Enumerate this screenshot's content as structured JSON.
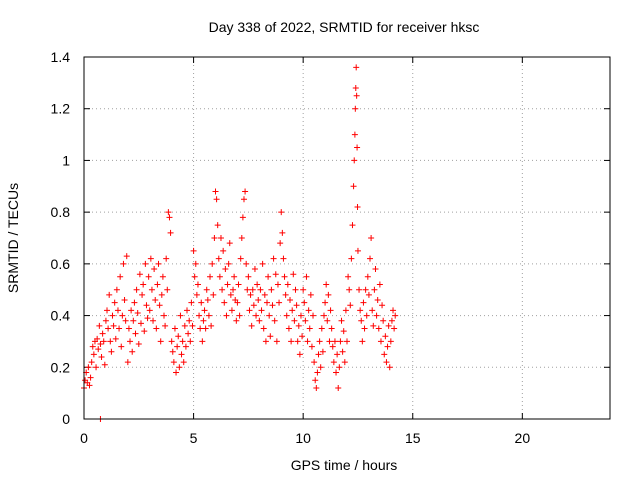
{
  "chart_data": {
    "type": "scatter",
    "title": "Day 338 of 2022, SRMTID for receiver hksc",
    "xlabel": "GPS time / hours",
    "ylabel": "SRMTID / TECUs",
    "xlim": [
      0,
      24
    ],
    "ylim": [
      0,
      1.4
    ],
    "xticks": [
      0,
      5,
      10,
      15,
      20
    ],
    "xtick_labels": [
      "0",
      "5",
      "10",
      "15",
      "20"
    ],
    "yticks": [
      0,
      0.2,
      0.4,
      0.6,
      0.8,
      1.0,
      1.2,
      1.4
    ],
    "ytick_labels": [
      "0",
      "0.2",
      "0.4",
      "0.6",
      "0.8",
      "1",
      "1.2",
      "1.4"
    ],
    "grid": true,
    "marker": "plus",
    "color": "#ff0000",
    "series": [
      {
        "name": "SRMTID",
        "points": [
          [
            0.0,
            0.12
          ],
          [
            0.05,
            0.15
          ],
          [
            0.1,
            0.18
          ],
          [
            0.15,
            0.14
          ],
          [
            0.2,
            0.2
          ],
          [
            0.25,
            0.13
          ],
          [
            0.3,
            0.16
          ],
          [
            0.35,
            0.22
          ],
          [
            0.4,
            0.28
          ],
          [
            0.45,
            0.25
          ],
          [
            0.5,
            0.3
          ],
          [
            0.55,
            0.2
          ],
          [
            0.6,
            0.31
          ],
          [
            0.65,
            0.27
          ],
          [
            0.7,
            0.36
          ],
          [
            0.75,
            0.29
          ],
          [
            0.8,
            0.24
          ],
          [
            0.85,
            0.33
          ],
          [
            0.9,
            0.3
          ],
          [
            0.95,
            0.21
          ],
          [
            1.0,
            0.38
          ],
          [
            1.05,
            0.42
          ],
          [
            1.1,
            0.35
          ],
          [
            1.15,
            0.48
          ],
          [
            1.2,
            0.3
          ],
          [
            1.25,
            0.26
          ],
          [
            1.3,
            0.4
          ],
          [
            1.35,
            0.36
          ],
          [
            1.4,
            0.45
          ],
          [
            1.45,
            0.31
          ],
          [
            1.5,
            0.5
          ],
          [
            1.55,
            0.42
          ],
          [
            1.6,
            0.35
          ],
          [
            1.65,
            0.55
          ],
          [
            1.7,
            0.28
          ],
          [
            1.75,
            0.4
          ],
          [
            1.8,
            0.6
          ],
          [
            1.85,
            0.46
          ],
          [
            1.9,
            0.38
          ],
          [
            1.95,
            0.63
          ],
          [
            2.0,
            0.22
          ],
          [
            2.05,
            0.35
          ],
          [
            2.1,
            0.3
          ],
          [
            2.15,
            0.42
          ],
          [
            2.2,
            0.26
          ],
          [
            2.25,
            0.38
          ],
          [
            2.3,
            0.45
          ],
          [
            2.35,
            0.33
          ],
          [
            2.4,
            0.5
          ],
          [
            2.45,
            0.41
          ],
          [
            2.5,
            0.29
          ],
          [
            2.55,
            0.56
          ],
          [
            2.6,
            0.37
          ],
          [
            2.65,
            0.48
          ],
          [
            2.7,
            0.52
          ],
          [
            2.75,
            0.34
          ],
          [
            2.8,
            0.6
          ],
          [
            2.85,
            0.44
          ],
          [
            2.9,
            0.39
          ],
          [
            2.95,
            0.55
          ],
          [
            3.0,
            0.42
          ],
          [
            3.05,
            0.62
          ],
          [
            3.1,
            0.5
          ],
          [
            3.15,
            0.38
          ],
          [
            3.2,
            0.58
          ],
          [
            3.25,
            0.46
          ],
          [
            3.3,
            0.35
          ],
          [
            3.35,
            0.52
          ],
          [
            3.4,
            0.6
          ],
          [
            3.45,
            0.44
          ],
          [
            3.5,
            0.3
          ],
          [
            3.55,
            0.48
          ],
          [
            3.6,
            0.55
          ],
          [
            3.65,
            0.4
          ],
          [
            3.7,
            0.36
          ],
          [
            3.75,
            0.62
          ],
          [
            3.8,
            0.5
          ],
          [
            3.85,
            0.8
          ],
          [
            3.9,
            0.78
          ],
          [
            3.95,
            0.72
          ],
          [
            4.0,
            0.3
          ],
          [
            4.05,
            0.26
          ],
          [
            4.1,
            0.22
          ],
          [
            4.15,
            0.35
          ],
          [
            4.2,
            0.18
          ],
          [
            4.25,
            0.28
          ],
          [
            4.3,
            0.32
          ],
          [
            4.35,
            0.2
          ],
          [
            4.4,
            0.4
          ],
          [
            4.45,
            0.25
          ],
          [
            4.5,
            0.3
          ],
          [
            4.55,
            0.22
          ],
          [
            4.6,
            0.36
          ],
          [
            4.65,
            0.28
          ],
          [
            4.7,
            0.42
          ],
          [
            4.75,
            0.33
          ],
          [
            4.8,
            0.38
          ],
          [
            4.85,
            0.3
          ],
          [
            4.9,
            0.45
          ],
          [
            4.95,
            0.36
          ],
          [
            5.0,
            0.65
          ],
          [
            5.05,
            0.55
          ],
          [
            5.1,
            0.6
          ],
          [
            5.15,
            0.48
          ],
          [
            5.2,
            0.52
          ],
          [
            5.25,
            0.4
          ],
          [
            5.3,
            0.35
          ],
          [
            5.35,
            0.45
          ],
          [
            5.4,
            0.3
          ],
          [
            5.45,
            0.38
          ],
          [
            5.5,
            0.42
          ],
          [
            5.55,
            0.35
          ],
          [
            5.6,
            0.5
          ],
          [
            5.65,
            0.46
          ],
          [
            5.7,
            0.4
          ],
          [
            5.75,
            0.55
          ],
          [
            5.8,
            0.36
          ],
          [
            5.85,
            0.6
          ],
          [
            5.9,
            0.48
          ],
          [
            5.95,
            0.7
          ],
          [
            6.0,
            0.88
          ],
          [
            6.05,
            0.85
          ],
          [
            6.1,
            0.75
          ],
          [
            6.15,
            0.62
          ],
          [
            6.2,
            0.55
          ],
          [
            6.25,
            0.7
          ],
          [
            6.3,
            0.5
          ],
          [
            6.35,
            0.65
          ],
          [
            6.4,
            0.45
          ],
          [
            6.45,
            0.58
          ],
          [
            6.5,
            0.4
          ],
          [
            6.55,
            0.52
          ],
          [
            6.6,
            0.6
          ],
          [
            6.65,
            0.68
          ],
          [
            6.7,
            0.48
          ],
          [
            6.75,
            0.42
          ],
          [
            6.8,
            0.5
          ],
          [
            6.85,
            0.55
          ],
          [
            6.9,
            0.46
          ],
          [
            6.95,
            0.38
          ],
          [
            7.0,
            0.45
          ],
          [
            7.05,
            0.52
          ],
          [
            7.1,
            0.4
          ],
          [
            7.15,
            0.62
          ],
          [
            7.2,
            0.7
          ],
          [
            7.25,
            0.78
          ],
          [
            7.3,
            0.85
          ],
          [
            7.35,
            0.88
          ],
          [
            7.4,
            0.6
          ],
          [
            7.45,
            0.5
          ],
          [
            7.5,
            0.55
          ],
          [
            7.55,
            0.42
          ],
          [
            7.6,
            0.48
          ],
          [
            7.65,
            0.36
          ],
          [
            7.7,
            0.5
          ],
          [
            7.75,
            0.44
          ],
          [
            7.8,
            0.58
          ],
          [
            7.85,
            0.4
          ],
          [
            7.9,
            0.52
          ],
          [
            7.95,
            0.46
          ],
          [
            8.0,
            0.38
          ],
          [
            8.05,
            0.5
          ],
          [
            8.1,
            0.42
          ],
          [
            8.15,
            0.6
          ],
          [
            8.2,
            0.35
          ],
          [
            8.25,
            0.48
          ],
          [
            8.3,
            0.3
          ],
          [
            8.35,
            0.45
          ],
          [
            8.4,
            0.55
          ],
          [
            8.45,
            0.4
          ],
          [
            8.5,
            0.32
          ],
          [
            8.55,
            0.5
          ],
          [
            8.6,
            0.44
          ],
          [
            8.65,
            0.62
          ],
          [
            8.7,
            0.38
          ],
          [
            8.75,
            0.56
          ],
          [
            8.8,
            0.3
          ],
          [
            8.85,
            0.52
          ],
          [
            8.9,
            0.45
          ],
          [
            8.95,
            0.68
          ],
          [
            9.0,
            0.8
          ],
          [
            9.05,
            0.72
          ],
          [
            9.1,
            0.62
          ],
          [
            9.15,
            0.55
          ],
          [
            9.2,
            0.48
          ],
          [
            9.25,
            0.4
          ],
          [
            9.3,
            0.52
          ],
          [
            9.35,
            0.35
          ],
          [
            9.4,
            0.46
          ],
          [
            9.45,
            0.3
          ],
          [
            9.5,
            0.42
          ],
          [
            9.55,
            0.56
          ],
          [
            9.6,
            0.38
          ],
          [
            9.65,
            0.5
          ],
          [
            9.7,
            0.44
          ],
          [
            9.75,
            0.3
          ],
          [
            9.8,
            0.36
          ],
          [
            9.85,
            0.25
          ],
          [
            9.9,
            0.4
          ],
          [
            9.95,
            0.32
          ],
          [
            10.0,
            0.5
          ],
          [
            10.05,
            0.45
          ],
          [
            10.1,
            0.38
          ],
          [
            10.15,
            0.55
          ],
          [
            10.2,
            0.3
          ],
          [
            10.25,
            0.42
          ],
          [
            10.3,
            0.35
          ],
          [
            10.35,
            0.48
          ],
          [
            10.4,
            0.28
          ],
          [
            10.45,
            0.4
          ],
          [
            10.5,
            0.22
          ],
          [
            10.55,
            0.15
          ],
          [
            10.6,
            0.12
          ],
          [
            10.65,
            0.18
          ],
          [
            10.7,
            0.25
          ],
          [
            10.75,
            0.3
          ],
          [
            10.8,
            0.2
          ],
          [
            10.85,
            0.35
          ],
          [
            10.9,
            0.26
          ],
          [
            10.95,
            0.4
          ],
          [
            11.0,
            0.45
          ],
          [
            11.05,
            0.52
          ],
          [
            11.1,
            0.38
          ],
          [
            11.15,
            0.48
          ],
          [
            11.2,
            0.3
          ],
          [
            11.25,
            0.42
          ],
          [
            11.3,
            0.35
          ],
          [
            11.35,
            0.28
          ],
          [
            11.4,
            0.22
          ],
          [
            11.45,
            0.3
          ],
          [
            11.5,
            0.18
          ],
          [
            11.55,
            0.25
          ],
          [
            11.6,
            0.12
          ],
          [
            11.65,
            0.2
          ],
          [
            11.7,
            0.3
          ],
          [
            11.75,
            0.38
          ],
          [
            11.8,
            0.26
          ],
          [
            11.85,
            0.34
          ],
          [
            11.9,
            0.22
          ],
          [
            11.95,
            0.42
          ],
          [
            12.0,
            0.3
          ],
          [
            12.05,
            0.55
          ],
          [
            12.1,
            0.5
          ],
          [
            12.15,
            0.44
          ],
          [
            12.2,
            0.62
          ],
          [
            12.25,
            0.75
          ],
          [
            12.3,
            0.9
          ],
          [
            12.33,
            1.0
          ],
          [
            12.36,
            1.1
          ],
          [
            12.38,
            1.2
          ],
          [
            12.4,
            1.28
          ],
          [
            12.42,
            1.36
          ],
          [
            12.44,
            1.25
          ],
          [
            12.46,
            1.05
          ],
          [
            12.48,
            0.82
          ],
          [
            12.5,
            0.65
          ],
          [
            12.55,
            0.5
          ],
          [
            12.6,
            0.42
          ],
          [
            12.65,
            0.38
          ],
          [
            12.7,
            0.3
          ],
          [
            12.75,
            0.45
          ],
          [
            12.8,
            0.35
          ],
          [
            12.85,
            0.5
          ],
          [
            12.9,
            0.4
          ],
          [
            12.95,
            0.55
          ],
          [
            13.0,
            0.48
          ],
          [
            13.05,
            0.62
          ],
          [
            13.1,
            0.7
          ],
          [
            13.15,
            0.42
          ],
          [
            13.2,
            0.36
          ],
          [
            13.25,
            0.5
          ],
          [
            13.3,
            0.58
          ],
          [
            13.35,
            0.4
          ],
          [
            13.4,
            0.46
          ],
          [
            13.45,
            0.35
          ],
          [
            13.5,
            0.52
          ],
          [
            13.55,
            0.3
          ],
          [
            13.6,
            0.44
          ],
          [
            13.65,
            0.38
          ],
          [
            13.7,
            0.25
          ],
          [
            13.75,
            0.32
          ],
          [
            13.8,
            0.22
          ],
          [
            13.85,
            0.28
          ],
          [
            13.9,
            0.36
          ],
          [
            13.95,
            0.2
          ],
          [
            14.0,
            0.3
          ],
          [
            14.05,
            0.38
          ],
          [
            14.1,
            0.42
          ],
          [
            14.15,
            0.35
          ],
          [
            14.2,
            0.4
          ],
          [
            0.75,
            0.0
          ]
        ]
      }
    ]
  }
}
